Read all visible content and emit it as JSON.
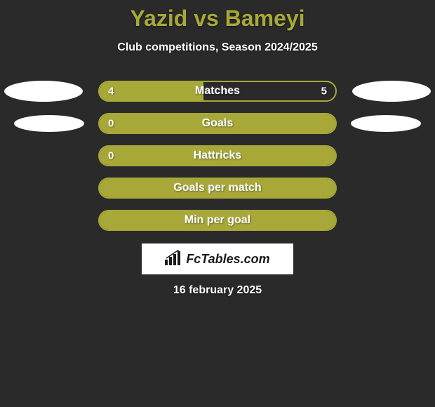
{
  "title": "Yazid vs Bameyi",
  "subtitle": "Club competitions, Season 2024/2025",
  "stats": [
    {
      "label": "Matches",
      "left_value": "4",
      "right_value": "5",
      "left_fill_pct": 44,
      "right_fill_pct": 0,
      "full_fill": false,
      "ellipse_left": "big",
      "ellipse_right": "big"
    },
    {
      "label": "Goals",
      "left_value": "0",
      "right_value": "",
      "left_fill_pct": 0,
      "right_fill_pct": 0,
      "full_fill": true,
      "ellipse_left": "med",
      "ellipse_right": "med"
    },
    {
      "label": "Hattricks",
      "left_value": "0",
      "right_value": "",
      "left_fill_pct": 0,
      "right_fill_pct": 0,
      "full_fill": true,
      "ellipse_left": "none",
      "ellipse_right": "none"
    },
    {
      "label": "Goals per match",
      "left_value": "",
      "right_value": "",
      "left_fill_pct": 0,
      "right_fill_pct": 0,
      "full_fill": true,
      "ellipse_left": "none",
      "ellipse_right": "none"
    },
    {
      "label": "Min per goal",
      "left_value": "",
      "right_value": "",
      "left_fill_pct": 0,
      "right_fill_pct": 0,
      "full_fill": true,
      "ellipse_left": "none",
      "ellipse_right": "none"
    }
  ],
  "logo_text": "FcTables.com",
  "footer_date": "16 february 2025",
  "colors": {
    "background": "#2a2a2a",
    "accent": "#a8a839",
    "text": "#ffffff",
    "logo_bg": "#ffffff",
    "logo_text": "#1a1a1a"
  }
}
